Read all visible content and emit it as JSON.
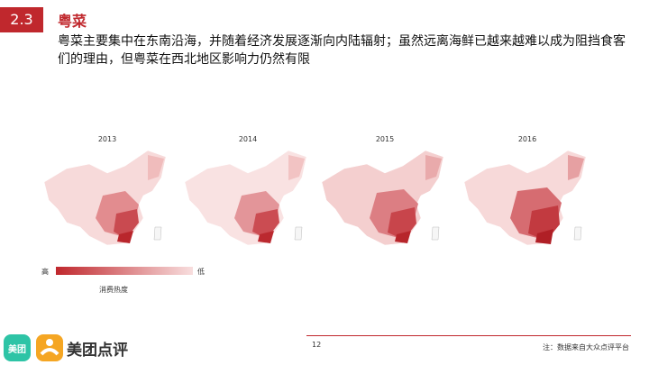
{
  "header": {
    "section_number": "2.3",
    "title": "粤菜",
    "subtitle": "粤菜主要集中在东南沿海，并随着经济发展逐渐向内陆辐射；虽然远离海鲜已越来越难以成为阻挡食客们的理由，但粤菜在西北地区影响力仍然有限"
  },
  "maps": [
    {
      "year": "2013"
    },
    {
      "year": "2014"
    },
    {
      "year": "2015"
    },
    {
      "year": "2016"
    }
  ],
  "legend": {
    "high": "高",
    "low": "低",
    "caption": "消费热度",
    "colors": [
      "#c0282d",
      "#f8dede"
    ]
  },
  "footer": {
    "page_number": "12",
    "note": "注：数据来自大众点评平台"
  },
  "logo": {
    "tile_text": "美团",
    "brand_name": "美团点评",
    "tile_color": "#2ec4a6",
    "mark_color": "#f5a623",
    "icons": [
      "meituan-tile-icon",
      "dianping-mark-icon"
    ]
  }
}
